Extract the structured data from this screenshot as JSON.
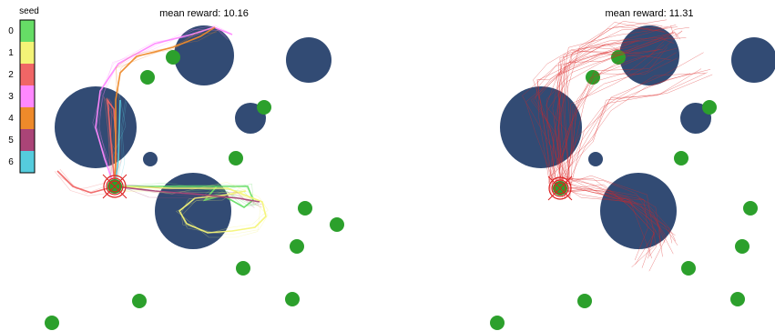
{
  "legend": {
    "title": "seed",
    "entries": [
      {
        "label": "0",
        "color": "#66dd66"
      },
      {
        "label": "1",
        "color": "#f4f477"
      },
      {
        "label": "2",
        "color": "#f06666"
      },
      {
        "label": "3",
        "color": "#ff88ff"
      },
      {
        "label": "4",
        "color": "#ee8a2a"
      },
      {
        "label": "5",
        "color": "#aa4477"
      },
      {
        "label": "6",
        "color": "#55ccdd"
      }
    ]
  },
  "colors": {
    "obstacle": "#324b74",
    "goal": "#2ca02c",
    "start_marker": "#dd2222"
  },
  "chart_data": [
    {
      "type": "scatter",
      "title": "mean reward: 10.16",
      "obstacles": "navy-blue-circles",
      "goals": "green-dots",
      "trajectories_by_seed": [
        "0",
        "1",
        "2",
        "3",
        "4",
        "5",
        "6"
      ]
    },
    {
      "type": "scatter",
      "title": "mean reward: 11.31",
      "obstacles": "navy-blue-circles",
      "goals": "green-dots",
      "trajectories_color": "#f06666"
    }
  ]
}
